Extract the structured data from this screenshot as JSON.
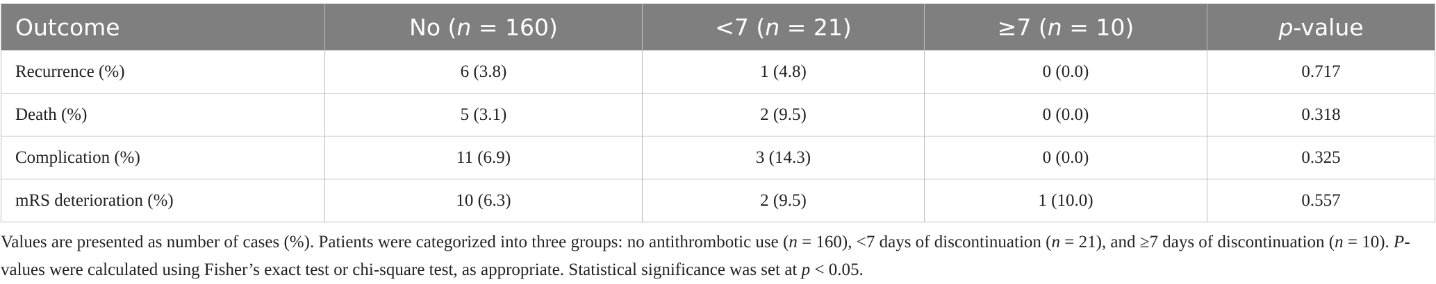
{
  "table": {
    "header": [
      [
        "Outcome"
      ],
      [
        "No (",
        {
          "text": "n",
          "italic": true
        },
        " = 160)"
      ],
      [
        "<7 (",
        {
          "text": "n",
          "italic": true
        },
        " = 21)"
      ],
      [
        "≥7 (",
        {
          "text": "n",
          "italic": true
        },
        " = 10)"
      ],
      [
        {
          "text": "p",
          "italic": true
        },
        "-value"
      ]
    ],
    "rows": [
      [
        "Recurrence (%)",
        "6 (3.8)",
        "1 (4.8)",
        "0 (0.0)",
        "0.717"
      ],
      [
        "Death (%)",
        "5 (3.1)",
        "2 (9.5)",
        "0 (0.0)",
        "0.318"
      ],
      [
        "Complication (%)",
        "11 (6.9)",
        "3 (14.3)",
        "0 (0.0)",
        "0.325"
      ],
      [
        "mRS deterioration (%)",
        "10 (6.3)",
        "2 (9.5)",
        "1 (10.0)",
        "0.557"
      ]
    ]
  },
  "footnote": [
    "Values are presented as number of cases (%). Patients were categorized into three groups: no antithrombotic use (",
    {
      "text": "n",
      "italic": true
    },
    " = 160), <7 days of discontinuation (",
    {
      "text": "n",
      "italic": true
    },
    " = 21), and ≥7 days of discontinuation (",
    {
      "text": "n",
      "italic": true
    },
    " = 10). ",
    {
      "text": "P",
      "italic": true
    },
    "-values were calculated using Fisher’s exact test or chi-square test, as appropriate. Statistical significance was set at ",
    {
      "text": "p",
      "italic": true
    },
    " < 0.05."
  ]
}
